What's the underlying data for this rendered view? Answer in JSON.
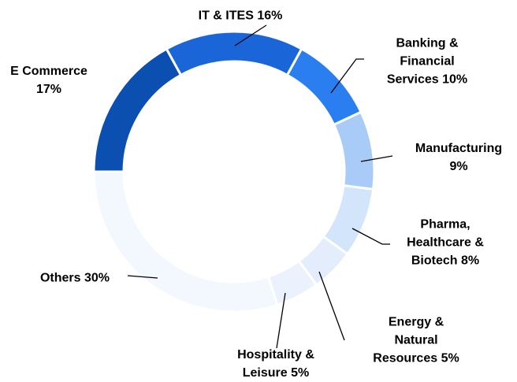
{
  "chart_data": {
    "type": "donut",
    "categories": [
      "E Commerce",
      "IT & ITES",
      "Banking & Financial Services",
      "Manufacturing",
      "Pharma, Healthcare & Biotech",
      "Energy & Natural Resources",
      "Hospitality & Leisure",
      "Others"
    ],
    "values": [
      17,
      16,
      10,
      9,
      8,
      5,
      5,
      30
    ],
    "value_labels": [
      "17%",
      "16%",
      "10%",
      "9%",
      "8%",
      "5%",
      "5%",
      "30%"
    ],
    "colors": [
      "#0b4fb0",
      "#1a66d9",
      "#2b7ef0",
      "#a9cbf7",
      "#d3e5fb",
      "#e3edfc",
      "#ebf2fd",
      "#f3f7fe"
    ]
  }
}
